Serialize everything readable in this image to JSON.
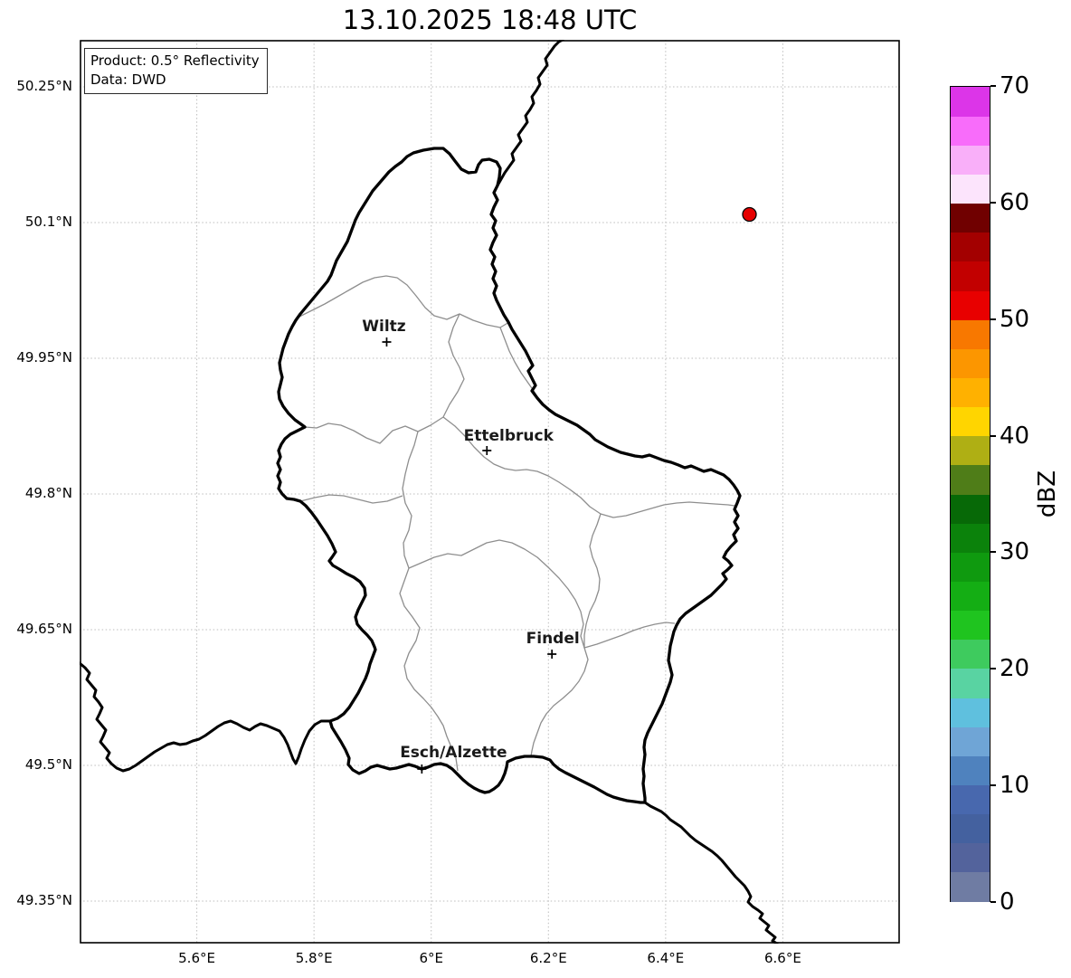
{
  "title": "13.10.2025 18:48 UTC",
  "info_box": {
    "line1": "Product: 0.5° Reflectivity",
    "line2": "Data: DWD"
  },
  "map": {
    "x_axis": {
      "ticks": [
        {
          "label": "5.6°E",
          "value": 5.6
        },
        {
          "label": "5.8°E",
          "value": 5.8
        },
        {
          "label": "6°E",
          "value": 6.0
        },
        {
          "label": "6.2°E",
          "value": 6.2
        },
        {
          "label": "6.4°E",
          "value": 6.4
        },
        {
          "label": "6.6°E",
          "value": 6.6
        }
      ]
    },
    "y_axis": {
      "ticks": [
        {
          "label": "50.25°N",
          "value": 50.25
        },
        {
          "label": "50.1°N",
          "value": 50.1
        },
        {
          "label": "49.95°N",
          "value": 49.95
        },
        {
          "label": "49.8°N",
          "value": 49.8
        },
        {
          "label": "49.65°N",
          "value": 49.65
        },
        {
          "label": "49.5°N",
          "value": 49.5
        },
        {
          "label": "49.35°N",
          "value": 49.35
        }
      ]
    },
    "cities": [
      {
        "name": "Wiltz",
        "lon": 5.924,
        "lat": 49.968
      },
      {
        "name": "Ettelbruck",
        "lon": 6.095,
        "lat": 49.848
      },
      {
        "name": "Findel",
        "lon": 6.206,
        "lat": 49.623
      },
      {
        "name": "Esch/Alzette",
        "lon": 5.984,
        "lat": 49.496
      }
    ],
    "radar_marker": {
      "lon": 6.543,
      "lat": 50.109,
      "color": "#e60000"
    }
  },
  "colorbar": {
    "label": "dBZ",
    "vmin": 0,
    "vmax": 70,
    "tick_values": [
      0,
      10,
      20,
      30,
      40,
      50,
      60,
      70
    ],
    "tick_labels": [
      "0",
      "10",
      "20",
      "30",
      "40",
      "50",
      "60",
      "70"
    ],
    "colors": [
      "#6F7CA3",
      "#53639C",
      "#44619F",
      "#4868AE",
      "#4F82BE",
      "#6FA5D6",
      "#5FC0DE",
      "#59D3A2",
      "#3ECB5E",
      "#1FC41F",
      "#14AE14",
      "#0F9A0F",
      "#0B820B",
      "#076907",
      "#4F7D18",
      "#AFAF14",
      "#FFD500",
      "#FFB100",
      "#FC9600",
      "#F87800",
      "#E80000",
      "#C20000",
      "#A30000",
      "#700000",
      "#FCE4FC",
      "#F9AFF9",
      "#F86CFA",
      "#DC35E8"
    ]
  }
}
